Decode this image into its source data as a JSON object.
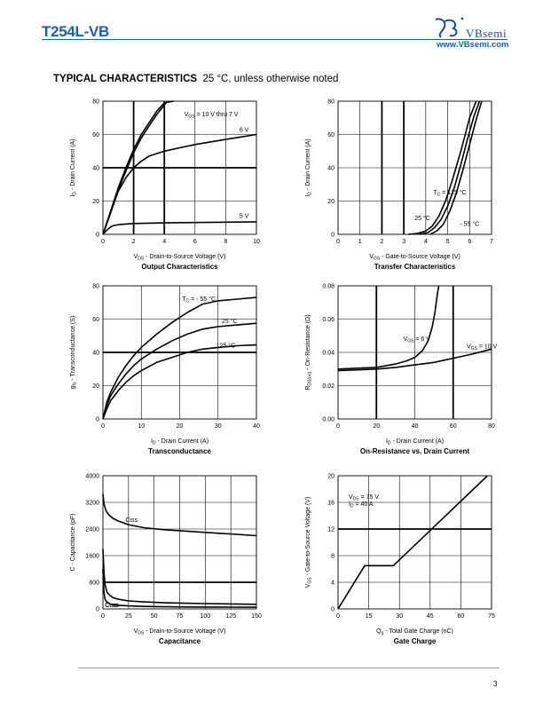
{
  "header": {
    "part_number": "T254L-VB",
    "logo_name": "VBsemi",
    "logo_url": "www.VBsemi.com"
  },
  "section": {
    "title_bold": "TYPICAL CHARACTERISTICS",
    "title_rest": "25 °C, unless otherwise noted"
  },
  "page_number": "3",
  "chart_data": [
    {
      "type": "line",
      "title": "Output Characteristics",
      "xlabel": "VDS - Drain-to-Source Voltage (V)",
      "ylabel": "ID - Drain Current (A)",
      "xlim": [
        0,
        10
      ],
      "ylim": [
        0,
        80
      ],
      "xticks": [
        0,
        2,
        4,
        6,
        8,
        10
      ],
      "yticks": [
        0,
        20,
        40,
        60,
        80
      ],
      "grid": true,
      "series": [
        {
          "name": "VGS = 10 V thru 7 V",
          "x": [
            0,
            0.5,
            1,
            1.5,
            2,
            2.5,
            3,
            3.5,
            4,
            4.6
          ],
          "y": [
            0,
            14,
            28,
            40,
            51,
            60,
            67,
            74,
            79,
            83
          ]
        },
        {
          "name": "",
          "x": [
            0,
            0.5,
            1,
            1.5,
            2,
            2.5,
            3,
            3.5,
            4.2
          ],
          "y": [
            0,
            13,
            27,
            38,
            49,
            58,
            65,
            72,
            80
          ]
        },
        {
          "name": "6 V",
          "x": [
            0,
            0.5,
            1,
            1.5,
            2,
            2.5,
            3,
            4,
            5,
            6,
            7,
            8,
            9,
            10
          ],
          "y": [
            0,
            13,
            26,
            34,
            40,
            44,
            47,
            50,
            52,
            54,
            55.5,
            57,
            58.5,
            60
          ]
        },
        {
          "name": "5 V",
          "x": [
            0,
            0.3,
            0.6,
            1,
            1.5,
            2,
            3,
            4,
            6,
            8,
            10
          ],
          "y": [
            0,
            3,
            5,
            5.8,
            6.2,
            6.5,
            6.7,
            6.9,
            7.1,
            7.3,
            7.5
          ]
        }
      ]
    },
    {
      "type": "line",
      "title": "Transfer Characteristics",
      "xlabel": "VGS - Gate-to-Source Voltage (V)",
      "ylabel": "ID - Drain Current (A)",
      "xlim": [
        0,
        7
      ],
      "ylim": [
        0,
        80
      ],
      "xticks": [
        0,
        1,
        2,
        3,
        4,
        5,
        6,
        7
      ],
      "yticks": [
        0,
        20,
        40,
        60,
        80
      ],
      "grid": true,
      "series": [
        {
          "name": "TC = 125 °C",
          "x": [
            3.2,
            3.6,
            4.0,
            4.3,
            4.6,
            4.9,
            5.2,
            5.6,
            6.0,
            6.3
          ],
          "y": [
            0,
            0.5,
            2,
            5,
            11,
            20,
            32,
            50,
            70,
            80
          ]
        },
        {
          "name": "25 °C",
          "x": [
            3.7,
            4.1,
            4.4,
            4.7,
            5.0,
            5.3,
            5.6,
            5.9,
            6.2,
            6.45
          ],
          "y": [
            0,
            1,
            4,
            9,
            17,
            28,
            42,
            57,
            71,
            80
          ]
        },
        {
          "name": "- 55 °C",
          "x": [
            4.2,
            4.5,
            4.8,
            5.1,
            5.4,
            5.7,
            6.0,
            6.3,
            6.55
          ],
          "y": [
            0,
            2,
            6,
            14,
            25,
            39,
            54,
            69,
            80
          ]
        }
      ]
    },
    {
      "type": "line",
      "title": "Transconductance",
      "xlabel": "ID - Drain Current (A)",
      "ylabel": "gfs - Transconductance (S)",
      "xlim": [
        0,
        40
      ],
      "ylim": [
        0,
        80
      ],
      "xticks": [
        0,
        10,
        20,
        30,
        40
      ],
      "yticks": [
        0,
        20,
        40,
        60,
        80
      ],
      "grid": true,
      "series": [
        {
          "name": "TC = - 55 °C",
          "x": [
            0,
            1,
            2,
            4,
            6,
            8,
            10,
            14,
            18,
            22,
            26,
            30,
            35,
            40
          ],
          "y": [
            0,
            10,
            16,
            25,
            32,
            38,
            43,
            51,
            58,
            64,
            69,
            71,
            72,
            73
          ]
        },
        {
          "name": "25 °C",
          "x": [
            0,
            1,
            2,
            4,
            6,
            8,
            10,
            14,
            18,
            22,
            26,
            30,
            35,
            40
          ],
          "y": [
            0,
            8,
            14,
            21,
            27,
            32,
            36,
            42,
            47,
            51,
            54,
            55.5,
            56.5,
            57.5
          ]
        },
        {
          "name": "125 °C",
          "x": [
            0,
            1,
            2,
            4,
            6,
            8,
            10,
            14,
            18,
            22,
            26,
            30,
            35,
            40
          ],
          "y": [
            0,
            6,
            11,
            17,
            22,
            26,
            29,
            34,
            37,
            40,
            42,
            43,
            44,
            44.5
          ]
        }
      ]
    },
    {
      "type": "line",
      "title": "On-Resistance vs. Drain Current",
      "xlabel": "ID - Drain Current (A)",
      "ylabel": "RDS(on) - On-Resistance (Ω)",
      "xlim": [
        0,
        80
      ],
      "ylim": [
        0,
        0.08
      ],
      "xticks": [
        0,
        20,
        40,
        60,
        80
      ],
      "yticks": [
        "0.00",
        "0.02",
        "0.04",
        "0.06",
        "0.08"
      ],
      "grid": true,
      "series": [
        {
          "name": "VGS = 6 V",
          "x": [
            0,
            10,
            20,
            30,
            36,
            40,
            44,
            47,
            49,
            50.5,
            51.5,
            52.5
          ],
          "y": [
            0.03,
            0.0305,
            0.031,
            0.033,
            0.035,
            0.037,
            0.041,
            0.047,
            0.055,
            0.064,
            0.073,
            0.08
          ]
        },
        {
          "name": "VGS = 10 V",
          "x": [
            0,
            10,
            20,
            30,
            40,
            50,
            60,
            70,
            80
          ],
          "y": [
            0.029,
            0.0295,
            0.03,
            0.031,
            0.0325,
            0.034,
            0.0365,
            0.039,
            0.042
          ]
        }
      ]
    },
    {
      "type": "line",
      "title": "Capacitance",
      "xlabel": "VDS - Drain-to-Source Voltage (V)",
      "ylabel": "C - Capacitance (pF)",
      "xlim": [
        0,
        150
      ],
      "ylim": [
        0,
        4000
      ],
      "xticks": [
        0,
        25,
        50,
        75,
        100,
        125,
        150
      ],
      "yticks": [
        0,
        800,
        1600,
        2400,
        3200,
        4000
      ],
      "grid": true,
      "series": [
        {
          "name": "Ciss",
          "x": [
            0,
            1,
            3,
            6,
            10,
            15,
            25,
            40,
            60,
            80,
            100,
            125,
            150
          ],
          "y": [
            3450,
            3150,
            2950,
            2820,
            2720,
            2640,
            2530,
            2440,
            2380,
            2340,
            2300,
            2250,
            2200
          ]
        },
        {
          "name": "Coss",
          "x": [
            0,
            1,
            2,
            4,
            7,
            10,
            15,
            25,
            40,
            60,
            80,
            100,
            125,
            150
          ],
          "y": [
            1800,
            1100,
            750,
            500,
            400,
            340,
            290,
            240,
            210,
            185,
            170,
            160,
            150,
            140
          ]
        },
        {
          "name": "Crss",
          "x": [
            0,
            1,
            2,
            4,
            7,
            10,
            15,
            25,
            40,
            60,
            80,
            100,
            125,
            150
          ],
          "y": [
            1200,
            500,
            300,
            200,
            150,
            130,
            110,
            90,
            75,
            65,
            60,
            55,
            52,
            50
          ]
        }
      ]
    },
    {
      "type": "line",
      "title": "Gate Charge",
      "xlabel": "Qg - Total Gate Charge (nC)",
      "ylabel": "VGS - Gate-to-Source Voltage (V)",
      "xlim": [
        0,
        75
      ],
      "ylim": [
        0,
        20
      ],
      "xticks": [
        0,
        15,
        30,
        45,
        60,
        75
      ],
      "yticks": [
        0,
        4,
        8,
        12,
        16,
        20
      ],
      "grid": true,
      "annotations": [
        "VDS = 75 V",
        "ID = 40 A"
      ],
      "series": [
        {
          "name": "",
          "x": [
            0,
            13,
            27,
            73
          ],
          "y": [
            0,
            6.5,
            6.5,
            20
          ]
        }
      ]
    }
  ]
}
